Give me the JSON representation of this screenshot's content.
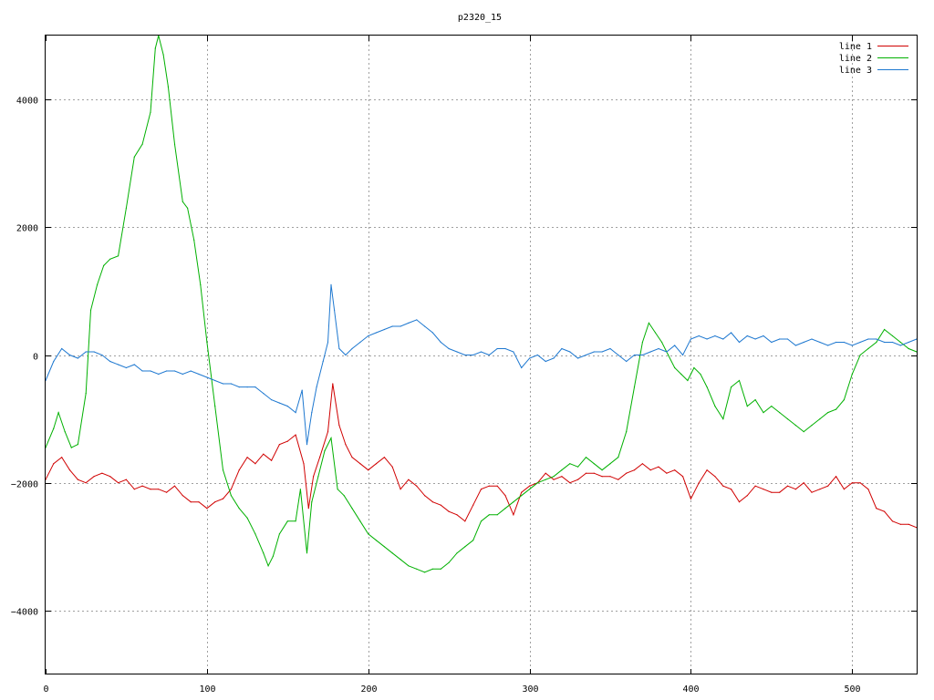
{
  "chart_data": {
    "type": "line",
    "title": "p2320_15",
    "xlabel": "",
    "ylabel": "",
    "xlim": [
      0,
      540
    ],
    "ylim": [
      -5000,
      5000
    ],
    "x_ticks": [
      0,
      100,
      200,
      300,
      400,
      500
    ],
    "y_ticks": [
      -4000,
      -2000,
      0,
      2000,
      4000
    ],
    "x_tick_labels": [
      "0",
      "100",
      "200",
      "300",
      "400",
      "500"
    ],
    "y_tick_labels": [
      "−4000",
      "−2000",
      "0",
      "2000",
      "4000"
    ],
    "grid": true,
    "legend_position": "top-right",
    "series": [
      {
        "name": "line 1",
        "color": "#d00000",
        "x": [
          0,
          5,
          10,
          15,
          20,
          25,
          30,
          35,
          40,
          45,
          50,
          55,
          60,
          65,
          70,
          75,
          80,
          85,
          90,
          95,
          100,
          105,
          110,
          115,
          120,
          125,
          130,
          135,
          140,
          145,
          150,
          155,
          160,
          163,
          166,
          170,
          175,
          178,
          182,
          186,
          190,
          195,
          200,
          205,
          210,
          215,
          220,
          225,
          230,
          235,
          240,
          245,
          250,
          255,
          260,
          265,
          270,
          275,
          280,
          285,
          290,
          295,
          300,
          305,
          310,
          315,
          320,
          325,
          330,
          335,
          340,
          345,
          350,
          355,
          360,
          365,
          370,
          375,
          380,
          385,
          390,
          395,
          400,
          405,
          410,
          415,
          420,
          425,
          430,
          435,
          440,
          445,
          450,
          455,
          460,
          465,
          470,
          475,
          480,
          485,
          490,
          495,
          500,
          505,
          510,
          515,
          520,
          525,
          530,
          535,
          540
        ],
        "values": [
          -1950,
          -1700,
          -1600,
          -1800,
          -1950,
          -2000,
          -1900,
          -1850,
          -1900,
          -2000,
          -1950,
          -2100,
          -2050,
          -2100,
          -2100,
          -2150,
          -2050,
          -2200,
          -2300,
          -2300,
          -2400,
          -2300,
          -2250,
          -2100,
          -1800,
          -1600,
          -1700,
          -1550,
          -1650,
          -1400,
          -1350,
          -1250,
          -1700,
          -2400,
          -1900,
          -1600,
          -1200,
          -450,
          -1100,
          -1400,
          -1600,
          -1700,
          -1800,
          -1700,
          -1600,
          -1750,
          -2100,
          -1950,
          -2050,
          -2200,
          -2300,
          -2350,
          -2450,
          -2500,
          -2600,
          -2350,
          -2100,
          -2050,
          -2050,
          -2200,
          -2500,
          -2150,
          -2050,
          -2000,
          -1850,
          -1950,
          -1900,
          -2000,
          -1950,
          -1850,
          -1850,
          -1900,
          -1900,
          -1950,
          -1850,
          -1800,
          -1700,
          -1800,
          -1750,
          -1850,
          -1800,
          -1900,
          -2250,
          -2000,
          -1800,
          -1900,
          -2050,
          -2100,
          -2300,
          -2200,
          -2050,
          -2100,
          -2150,
          -2150,
          -2050,
          -2100,
          -2000,
          -2150,
          -2100,
          -2050,
          -1900,
          -2100,
          -2000,
          -2000,
          -2100,
          -2400,
          -2450,
          -2600,
          -2650,
          -2650,
          -2700
        ]
      },
      {
        "name": "line 2",
        "color": "#00b000",
        "x": [
          0,
          5,
          8,
          12,
          16,
          20,
          25,
          28,
          32,
          36,
          40,
          45,
          50,
          55,
          60,
          65,
          68,
          70,
          73,
          76,
          80,
          85,
          88,
          92,
          96,
          100,
          105,
          110,
          115,
          120,
          125,
          130,
          135,
          138,
          141,
          145,
          150,
          155,
          158,
          162,
          165,
          169,
          173,
          177,
          181,
          185,
          190,
          195,
          200,
          205,
          210,
          215,
          220,
          225,
          230,
          235,
          240,
          245,
          250,
          255,
          260,
          265,
          270,
          275,
          280,
          285,
          290,
          295,
          300,
          305,
          310,
          315,
          320,
          325,
          330,
          335,
          340,
          345,
          350,
          355,
          360,
          365,
          370,
          374,
          378,
          382,
          386,
          390,
          394,
          398,
          402,
          406,
          410,
          415,
          420,
          425,
          430,
          435,
          440,
          445,
          450,
          455,
          460,
          465,
          470,
          475,
          480,
          485,
          490,
          495,
          500,
          505,
          510,
          515,
          520,
          525,
          530,
          535,
          540
        ],
        "values": [
          -1450,
          -1150,
          -900,
          -1200,
          -1450,
          -1400,
          -600,
          700,
          1100,
          1400,
          1500,
          1550,
          2300,
          3100,
          3300,
          3800,
          4800,
          5000,
          4700,
          4200,
          3300,
          2400,
          2300,
          1800,
          1100,
          200,
          -800,
          -1800,
          -2200,
          -2400,
          -2550,
          -2800,
          -3100,
          -3300,
          -3150,
          -2800,
          -2600,
          -2600,
          -2100,
          -3100,
          -2300,
          -1900,
          -1500,
          -1300,
          -2100,
          -2200,
          -2400,
          -2600,
          -2800,
          -2900,
          -3000,
          -3100,
          -3200,
          -3300,
          -3350,
          -3400,
          -3350,
          -3350,
          -3250,
          -3100,
          -3000,
          -2900,
          -2600,
          -2500,
          -2500,
          -2400,
          -2300,
          -2200,
          -2100,
          -2000,
          -1950,
          -1900,
          -1800,
          -1700,
          -1750,
          -1600,
          -1700,
          -1800,
          -1700,
          -1600,
          -1200,
          -500,
          200,
          500,
          350,
          200,
          0,
          -200,
          -300,
          -400,
          -200,
          -300,
          -500,
          -800,
          -1000,
          -500,
          -400,
          -800,
          -700,
          -900,
          -800,
          -900,
          -1000,
          -1100,
          -1200,
          -1100,
          -1000,
          -900,
          -850,
          -700,
          -300,
          0,
          100,
          200,
          400,
          300,
          200,
          100,
          50
        ]
      },
      {
        "name": "line 3",
        "color": "#1e78d0",
        "x": [
          0,
          5,
          10,
          15,
          20,
          25,
          30,
          35,
          40,
          45,
          50,
          55,
          60,
          65,
          70,
          75,
          80,
          85,
          90,
          95,
          100,
          105,
          110,
          115,
          120,
          125,
          130,
          135,
          140,
          145,
          150,
          155,
          159,
          162,
          165,
          168,
          172,
          175,
          177,
          179,
          182,
          186,
          190,
          195,
          200,
          205,
          210,
          215,
          220,
          225,
          230,
          235,
          240,
          245,
          250,
          255,
          260,
          265,
          270,
          275,
          280,
          285,
          290,
          295,
          300,
          305,
          310,
          315,
          320,
          325,
          330,
          335,
          340,
          345,
          350,
          355,
          360,
          365,
          370,
          375,
          380,
          385,
          390,
          395,
          400,
          405,
          410,
          415,
          420,
          425,
          430,
          435,
          440,
          445,
          450,
          455,
          460,
          465,
          470,
          475,
          480,
          485,
          490,
          495,
          500,
          505,
          510,
          515,
          520,
          525,
          530,
          535,
          540
        ],
        "values": [
          -400,
          -100,
          100,
          0,
          -50,
          50,
          50,
          0,
          -100,
          -150,
          -200,
          -150,
          -250,
          -250,
          -300,
          -250,
          -250,
          -300,
          -250,
          -300,
          -350,
          -400,
          -450,
          -450,
          -500,
          -500,
          -500,
          -600,
          -700,
          -750,
          -800,
          -900,
          -550,
          -1400,
          -900,
          -500,
          -100,
          200,
          1100,
          700,
          100,
          0,
          100,
          200,
          300,
          350,
          400,
          450,
          450,
          500,
          550,
          450,
          350,
          200,
          100,
          50,
          0,
          0,
          50,
          0,
          100,
          100,
          50,
          -200,
          -50,
          0,
          -100,
          -50,
          100,
          50,
          -50,
          0,
          50,
          50,
          100,
          0,
          -100,
          0,
          0,
          50,
          100,
          50,
          150,
          0,
          250,
          300,
          250,
          300,
          250,
          350,
          200,
          300,
          250,
          300,
          200,
          250,
          250,
          150,
          200,
          250,
          200,
          150,
          200,
          200,
          150,
          200,
          250,
          250,
          200,
          200,
          150,
          200,
          250
        ]
      }
    ]
  }
}
